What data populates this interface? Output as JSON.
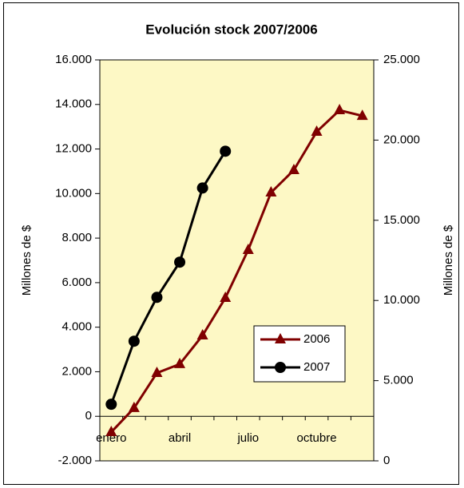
{
  "chart_data": {
    "type": "line",
    "title": "Evolución stock 2007/2006",
    "ylabel": "Millones de $",
    "y2label": "Millones de $",
    "categories": [
      "enero",
      null,
      null,
      "abril",
      null,
      null,
      "julio",
      null,
      null,
      "octubre",
      null,
      null
    ],
    "series": [
      {
        "name": "2006",
        "color": "#800000",
        "marker": "triangle",
        "axis": "y2",
        "values": [
          1790,
          3290,
          5480,
          6030,
          7820,
          10160,
          13150,
          16730,
          18130,
          20520,
          21860,
          21510
        ]
      },
      {
        "name": "2007",
        "color": "#000000",
        "marker": "circle",
        "values": [
          540,
          3370,
          5340,
          6920,
          10250,
          11900,
          null,
          null,
          null,
          null,
          null,
          null
        ]
      }
    ],
    "ylim": [
      -2000,
      16000
    ],
    "yticks": [
      {
        "value": -2000,
        "label": "-2.000"
      },
      0,
      {
        "value": 2000,
        "label": "2.000"
      },
      {
        "value": 4000,
        "label": "4.000"
      },
      {
        "value": 6000,
        "label": "6.000"
      },
      {
        "value": 8000,
        "label": "8.000"
      },
      {
        "value": 10000,
        "label": "10.000"
      },
      {
        "value": 12000,
        "label": "12.000"
      },
      {
        "value": 14000,
        "label": "14.000"
      },
      {
        "value": 16000,
        "label": "16.000"
      }
    ],
    "y2lim": [
      0,
      25000
    ],
    "y2ticks": [
      0,
      {
        "value": 5000,
        "label": "5.000"
      },
      {
        "value": 10000,
        "label": "10.000"
      },
      {
        "value": 15000,
        "label": "15.000"
      },
      {
        "value": 20000,
        "label": "20.000"
      },
      {
        "value": 25000,
        "label": "25.000"
      }
    ],
    "plot_color": "#fdf8c5"
  }
}
